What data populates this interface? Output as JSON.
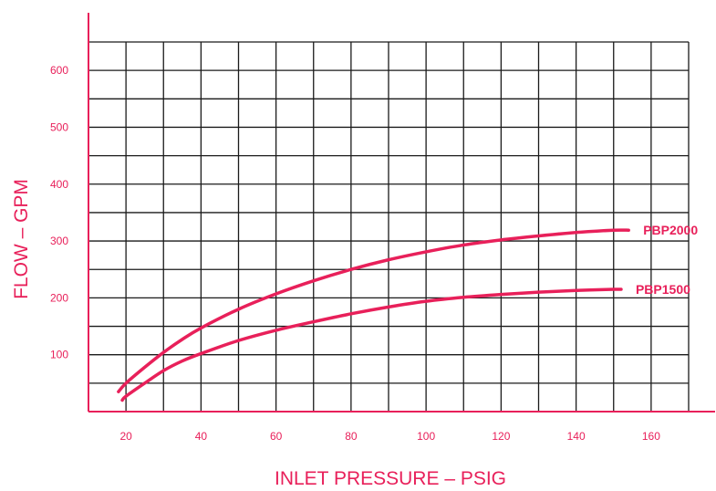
{
  "colors": {
    "accent": "#e8205a",
    "grid": "#1a1a1a",
    "background": "#ffffff"
  },
  "chart_data": {
    "type": "line",
    "title": "",
    "xlabel": "INLET PRESSURE – PSIG",
    "ylabel": "FLOW – GPM",
    "xlim": [
      10,
      170
    ],
    "ylim": [
      0,
      650
    ],
    "x_ticks": [
      20,
      40,
      60,
      80,
      100,
      120,
      140,
      160
    ],
    "x_tick_labels": [
      "20",
      "40",
      "60",
      "80",
      "100",
      "120",
      "140",
      "160"
    ],
    "y_ticks": [
      100,
      200,
      300,
      400,
      500,
      600
    ],
    "y_tick_labels": [
      "100",
      "200",
      "300",
      "400",
      "500",
      "600"
    ],
    "grid": true,
    "x_grid_step": 10,
    "y_grid_step": 50,
    "series": [
      {
        "name": "PBP2000",
        "x": [
          18,
          20,
          25,
          30,
          35,
          40,
          50,
          60,
          70,
          80,
          90,
          100,
          110,
          120,
          130,
          140,
          150,
          154
        ],
        "y": [
          35,
          50,
          78,
          104,
          127,
          147,
          180,
          207,
          230,
          250,
          267,
          281,
          293,
          302,
          309,
          315,
          319,
          319
        ]
      },
      {
        "name": "PBP1500",
        "x": [
          19,
          20,
          25,
          30,
          35,
          40,
          50,
          60,
          70,
          80,
          90,
          100,
          110,
          120,
          130,
          140,
          150,
          152
        ],
        "y": [
          20,
          27,
          50,
          72,
          89,
          102,
          125,
          143,
          158,
          172,
          184,
          194,
          201,
          206,
          210,
          213,
          215,
          215
        ]
      }
    ]
  }
}
